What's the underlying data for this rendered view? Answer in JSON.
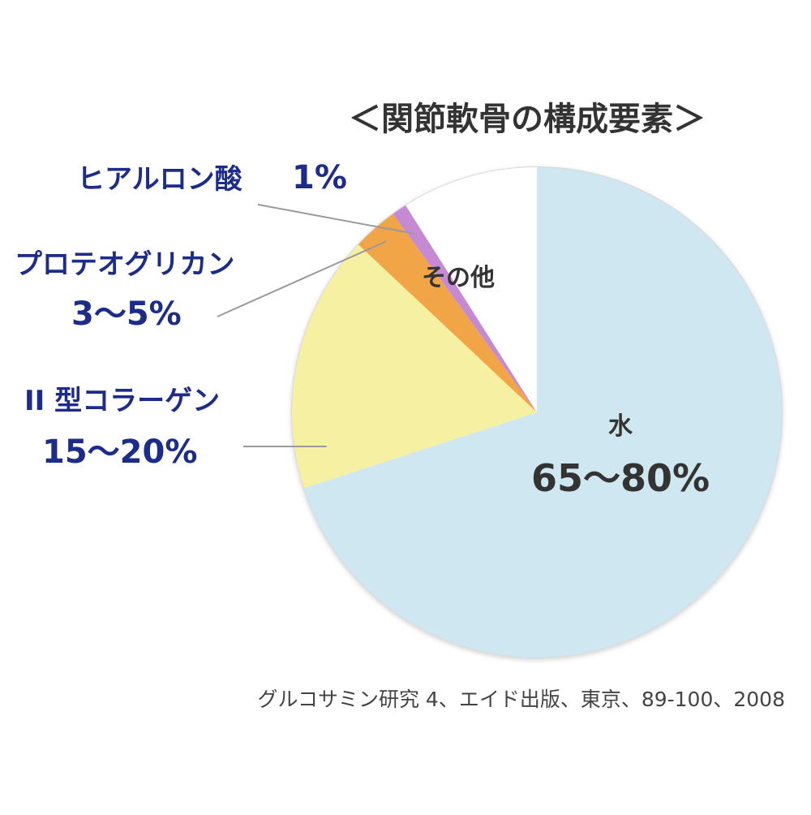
{
  "chart_data": {
    "type": "pie",
    "title": "＜関節軟骨の構成要素＞",
    "source": "グルコサミン研究 4、エイド出版、東京、89-100、2008",
    "start_angle_deg": 0,
    "direction": "clockwise",
    "slices": [
      {
        "name": "水",
        "value_label": "65〜80%",
        "value": 70,
        "color": "#cfe7f1"
      },
      {
        "name": "II 型コラーゲン",
        "value_label": "15〜20%",
        "value": 17,
        "color": "#f6f1a2"
      },
      {
        "name": "プロテオグリカン",
        "value_label": "3〜5%",
        "value": 3,
        "color": "#f1a547"
      },
      {
        "name": "ヒアルロン酸",
        "value_label": "1%",
        "value": 1,
        "color": "#c68ad3"
      },
      {
        "name": "その他",
        "value_label": "",
        "value": 9,
        "color": "#ffffff"
      }
    ],
    "label_color": "#1c2c8a"
  }
}
